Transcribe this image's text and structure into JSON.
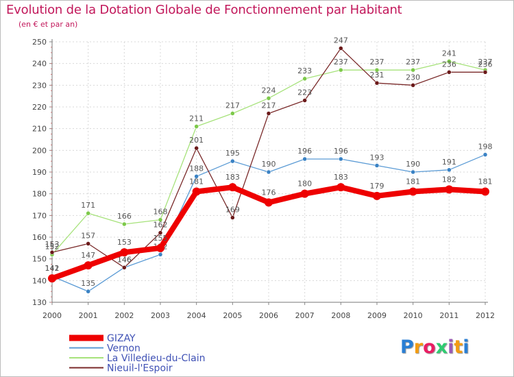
{
  "chart_data": {
    "type": "line",
    "title": "Evolution de la Dotation Globale de Fonctionnement par Habitant",
    "subtitle": "(en € et par an)",
    "xlabel": "",
    "ylabel": "",
    "ylim": [
      130,
      250
    ],
    "yticks": [
      130,
      140,
      150,
      160,
      170,
      180,
      190,
      200,
      210,
      220,
      230,
      240,
      250
    ],
    "grid": true,
    "legend_position": "bottom-left",
    "categories": [
      "2000",
      "2001",
      "2002",
      "2003",
      "2004",
      "2005",
      "2006",
      "2007",
      "2008",
      "2009",
      "2010",
      "2011",
      "2012"
    ],
    "series": [
      {
        "name": "Vernon",
        "color": "#5b9bd5",
        "marker": "#3a82c4",
        "values": [
          142,
          135,
          146,
          152,
          188,
          195,
          190,
          196,
          196,
          193,
          190,
          191,
          198
        ]
      },
      {
        "name": "La Villedieu-du-Clain",
        "color": "#a6e27a",
        "marker": "#7dc94a",
        "values": [
          152,
          171,
          166,
          168,
          211,
          217,
          224,
          233,
          237,
          237,
          237,
          241,
          237
        ]
      },
      {
        "name": "Nieuil-l'Espoir",
        "color": "#7a2a2a",
        "marker": "#6b1a1a",
        "values": [
          153,
          157,
          146,
          162,
          201,
          169,
          217,
          223,
          247,
          231,
          230,
          236,
          236
        ]
      },
      {
        "name": "GIZAY",
        "color": "#ee0000",
        "marker": "#ee0000",
        "values": [
          141,
          147,
          153,
          155,
          181,
          183,
          176,
          180,
          183,
          179,
          181,
          182,
          181
        ]
      }
    ],
    "legend_order": [
      "GIZAY",
      "Vernon",
      "La Villedieu-du-Clain",
      "Nieuil-l'Espoir"
    ]
  },
  "logo": {
    "letters": [
      "P",
      "r",
      "o",
      "x",
      "i",
      "t",
      "i"
    ],
    "colors": [
      "#2a7fd4",
      "#f39c12",
      "#e91e63",
      "#2ecc71",
      "#9b59b6",
      "#f39c12",
      "#2a7fd4"
    ]
  }
}
